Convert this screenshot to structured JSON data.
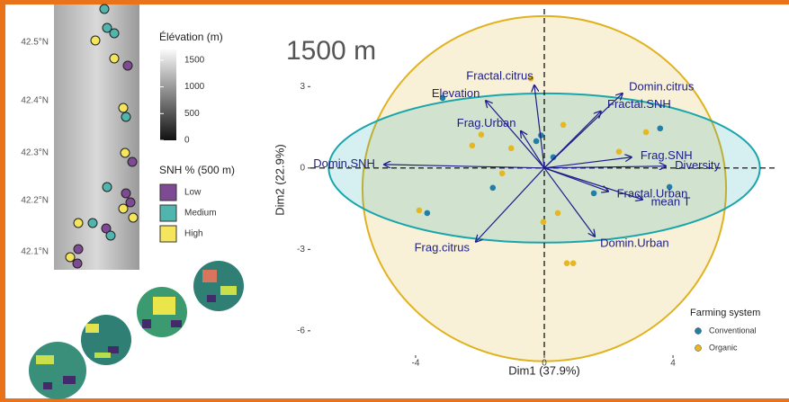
{
  "map": {
    "lat_labels": [
      "42.5°N",
      "42.4°N",
      "42.3°N",
      "42.2°N",
      "42.1°N"
    ],
    "elevation_legend": {
      "title": "Élévation (m)",
      "range": [
        0,
        1700
      ],
      "ticks": [
        1500,
        1000,
        500,
        0
      ]
    },
    "snh_legend": {
      "title": "SNH % (500 m)",
      "items": [
        {
          "name": "Low",
          "color": "#7d4a93"
        },
        {
          "name": "Medium",
          "color": "#4fb5ad"
        },
        {
          "name": "High",
          "color": "#f4e55c"
        }
      ]
    }
  },
  "chart_data": {
    "type": "scatter",
    "title": "1500 m",
    "x_label": "Dim1 (37.9%)",
    "y_label": "Dim2 (22.9%)",
    "xlim": [
      -7.27,
      7.27
    ],
    "ylim": [
      -6.9,
      5.86
    ],
    "xticks": [
      -4,
      0,
      4
    ],
    "yticks": [
      -6,
      -3,
      0,
      3
    ],
    "zero_lines": true,
    "legend_title": "Farming system",
    "legend": "bottom-right",
    "series": [
      {
        "name": "Conventional",
        "color": "#1f7fa8",
        "ellipse_color": "#19a5ab",
        "x": [
          -3.16,
          -0.25,
          3.6,
          3.89,
          -1.6,
          -3.64,
          1.54,
          0.28,
          -0.1
        ],
        "y": [
          2.58,
          0.99,
          1.46,
          -0.7,
          -0.73,
          -1.66,
          -0.93,
          0.4,
          1.2
        ],
        "ellipse": {
          "cx": 0,
          "cy": 0,
          "rx": 6.7,
          "ry": 2.75
        }
      },
      {
        "name": "Organic",
        "color": "#e6b623",
        "ellipse_color": "#e0b21f",
        "x": [
          -0.42,
          0.59,
          -1.96,
          -2.24,
          -1.03,
          -1.31,
          2.32,
          3.16,
          -3.89,
          -0.03,
          0.42,
          0.7,
          0.9
        ],
        "y": [
          3.3,
          1.59,
          1.23,
          0.83,
          0.73,
          -0.2,
          0.6,
          1.32,
          -1.56,
          -1.99,
          -1.66,
          -3.51,
          -3.51
        ],
        "ellipse": {
          "cx": 0,
          "cy": -0.76,
          "rx": 5.65,
          "ry": 6.36
        }
      }
    ],
    "vector_color": "#1c1c8a",
    "vectors": [
      {
        "name": "Elevation",
        "x": -1.82,
        "y": 2.48
      },
      {
        "name": "Fractal.citrus",
        "x": -0.31,
        "y": 3.05
      },
      {
        "name": "Domin.citrus",
        "x": 2.43,
        "y": 2.75
      },
      {
        "name": "Fractal.SNH",
        "x": 1.76,
        "y": 2.09
      },
      {
        "name": "Frag.Urban",
        "x": -0.73,
        "y": 1.36
      },
      {
        "name": "Domin.SNH",
        "x": -4.98,
        "y": 0.13
      },
      {
        "name": "Frag.SNH",
        "x": 2.71,
        "y": 0.4
      },
      {
        "name": "Diversity",
        "x": 3.78,
        "y": 0.07
      },
      {
        "name": "mean T",
        "x": 3.05,
        "y": -1.16
      },
      {
        "name": "Fractal.Urban",
        "x": 1.99,
        "y": -0.86
      },
      {
        "name": "Frag.citrus",
        "x": -2.13,
        "y": -2.72
      },
      {
        "name": "Domin.Urban",
        "x": 1.57,
        "y": -2.52
      }
    ]
  }
}
